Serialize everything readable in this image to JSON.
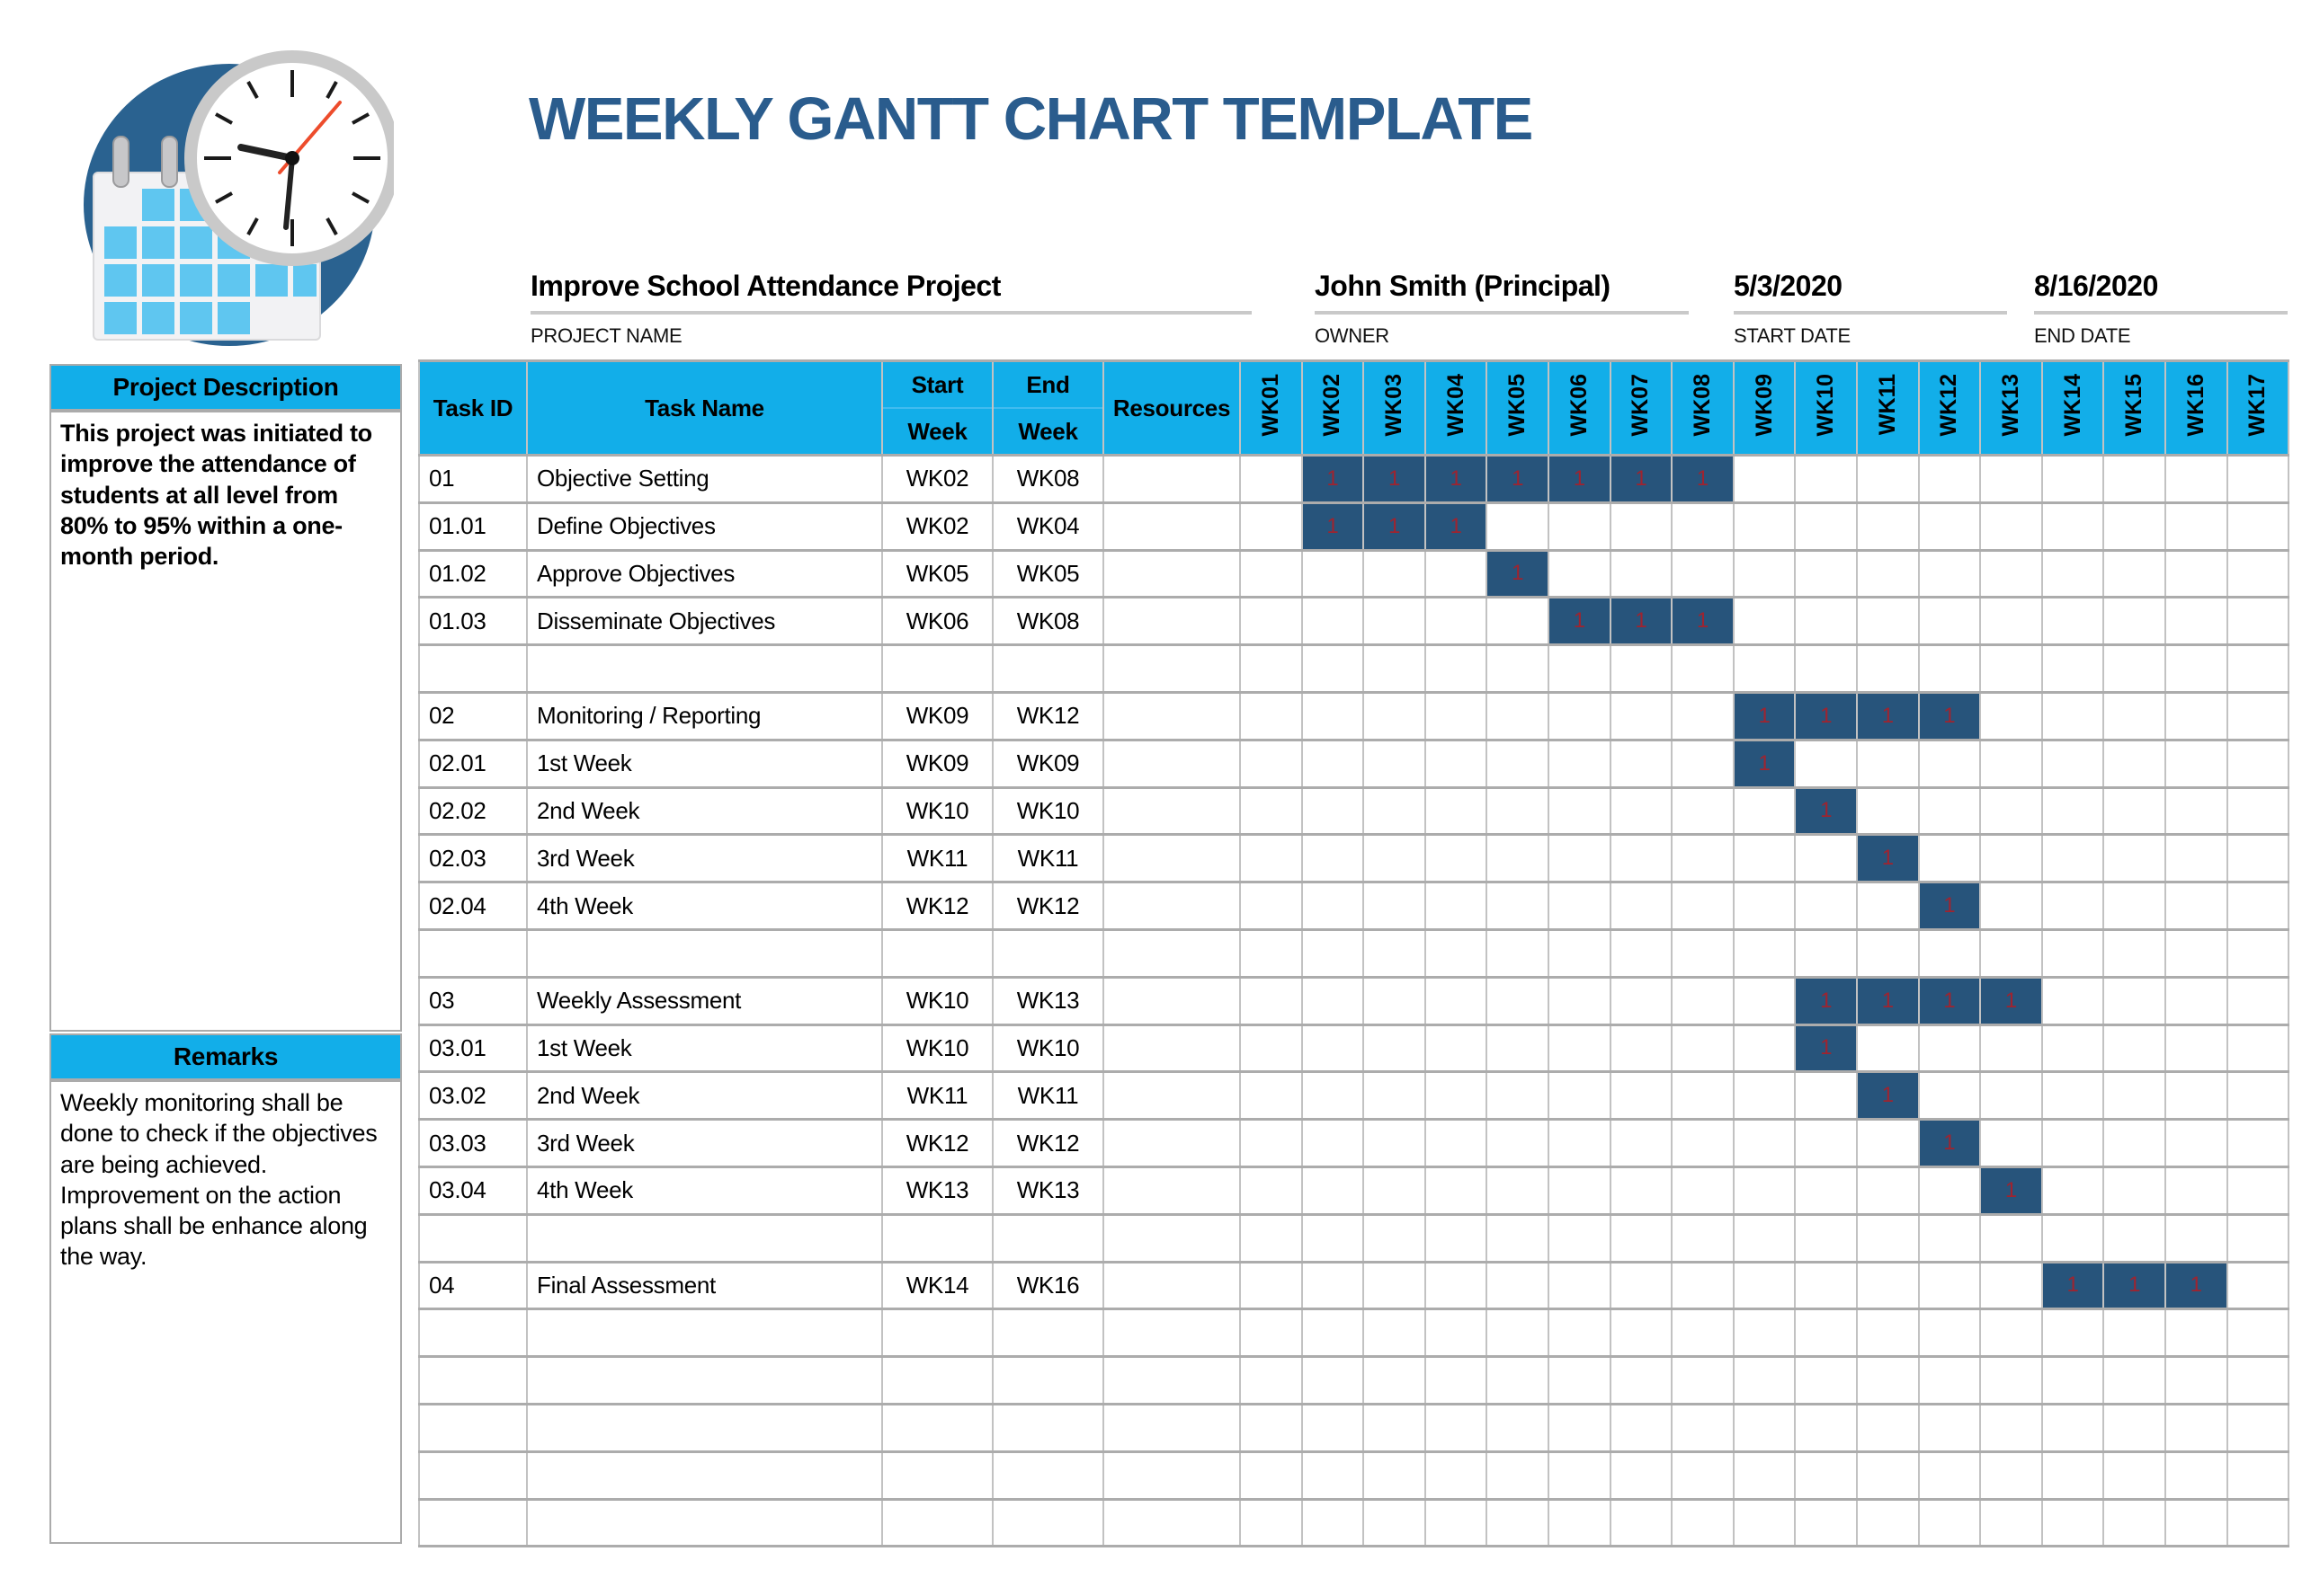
{
  "title": "WEEKLY GANTT CHART TEMPLATE",
  "colors": {
    "header_cyan": "#12AEE9",
    "bar_navy": "#27547B",
    "bar_value_red": "#9E2430",
    "title_blue": "#2A5C8D",
    "grid_gray": "#ACACAC",
    "logo_circle_blue": "#2A6290",
    "logo_square_blue": "#5FC6F0"
  },
  "project_info": {
    "project_name": {
      "value": "Improve School Attendance Project",
      "label": "PROJECT NAME"
    },
    "owner": {
      "value": "John Smith (Principal)",
      "label": "OWNER"
    },
    "start_date": {
      "value": "5/3/2020",
      "label": "START DATE"
    },
    "end_date": {
      "value": "8/16/2020",
      "label": "END DATE"
    }
  },
  "sidebar": {
    "description_header": "Project Description",
    "description_text": "This project was initiated to improve the attendance of students at all level from 80% to 95% within a one-month period.",
    "remarks_header": "Remarks",
    "remarks_text": "Weekly monitoring shall be done to check if the objectives are being achieved.\nImprovement on the action plans shall be enhance along the way."
  },
  "table": {
    "headers": {
      "task_id": "Task ID",
      "task_name": "Task Name",
      "start_line1": "Start",
      "start_line2": "Week",
      "end_line1": "End",
      "end_line2": "Week",
      "resources": "Resources"
    },
    "week_columns": [
      "WK01",
      "WK02",
      "WK03",
      "WK04",
      "WK05",
      "WK06",
      "WK07",
      "WK08",
      "WK09",
      "WK10",
      "WK11",
      "WK12",
      "WK13",
      "WK14",
      "WK15",
      "WK16",
      "WK17"
    ],
    "bar_value": "1",
    "rows": [
      {
        "id": "01",
        "name": "Objective Setting",
        "start": "WK02",
        "end": "WK08",
        "resources": "",
        "bar": [
          2,
          8
        ]
      },
      {
        "id": "01.01",
        "name": "Define Objectives",
        "start": "WK02",
        "end": "WK04",
        "resources": "",
        "bar": [
          2,
          4
        ]
      },
      {
        "id": "01.02",
        "name": "Approve Objectives",
        "start": "WK05",
        "end": "WK05",
        "resources": "",
        "bar": [
          5,
          5
        ]
      },
      {
        "id": "01.03",
        "name": "Disseminate Objectives",
        "start": "WK06",
        "end": "WK08",
        "resources": "",
        "bar": [
          6,
          8
        ]
      },
      {
        "id": "",
        "name": "",
        "start": "",
        "end": "",
        "resources": "",
        "bar": null
      },
      {
        "id": "02",
        "name": "Monitoring / Reporting",
        "start": "WK09",
        "end": "WK12",
        "resources": "",
        "bar": [
          9,
          12
        ]
      },
      {
        "id": "02.01",
        "name": "1st Week",
        "start": "WK09",
        "end": "WK09",
        "resources": "",
        "bar": [
          9,
          9
        ]
      },
      {
        "id": "02.02",
        "name": "2nd Week",
        "start": "WK10",
        "end": "WK10",
        "resources": "",
        "bar": [
          10,
          10
        ]
      },
      {
        "id": "02.03",
        "name": "3rd Week",
        "start": "WK11",
        "end": "WK11",
        "resources": "",
        "bar": [
          11,
          11
        ]
      },
      {
        "id": "02.04",
        "name": "4th Week",
        "start": "WK12",
        "end": "WK12",
        "resources": "",
        "bar": [
          12,
          12
        ]
      },
      {
        "id": "",
        "name": "",
        "start": "",
        "end": "",
        "resources": "",
        "bar": null
      },
      {
        "id": "03",
        "name": "Weekly Assessment",
        "start": "WK10",
        "end": "WK13",
        "resources": "",
        "bar": [
          10,
          13
        ]
      },
      {
        "id": "03.01",
        "name": "1st Week",
        "start": "WK10",
        "end": "WK10",
        "resources": "",
        "bar": [
          10,
          10
        ]
      },
      {
        "id": "03.02",
        "name": "2nd Week",
        "start": "WK11",
        "end": "WK11",
        "resources": "",
        "bar": [
          11,
          11
        ]
      },
      {
        "id": "03.03",
        "name": "3rd Week",
        "start": "WK12",
        "end": "WK12",
        "resources": "",
        "bar": [
          12,
          12
        ]
      },
      {
        "id": "03.04",
        "name": "4th Week",
        "start": "WK13",
        "end": "WK13",
        "resources": "",
        "bar": [
          13,
          13
        ]
      },
      {
        "id": "",
        "name": "",
        "start": "",
        "end": "",
        "resources": "",
        "bar": null
      },
      {
        "id": "04",
        "name": "Final Assessment",
        "start": "WK14",
        "end": "WK16",
        "resources": "",
        "bar": [
          14,
          16
        ]
      },
      {
        "id": "",
        "name": "",
        "start": "",
        "end": "",
        "resources": "",
        "bar": null
      },
      {
        "id": "",
        "name": "",
        "start": "",
        "end": "",
        "resources": "",
        "bar": null
      },
      {
        "id": "",
        "name": "",
        "start": "",
        "end": "",
        "resources": "",
        "bar": null
      },
      {
        "id": "",
        "name": "",
        "start": "",
        "end": "",
        "resources": "",
        "bar": null
      },
      {
        "id": "",
        "name": "",
        "start": "",
        "end": "",
        "resources": "",
        "bar": null
      }
    ]
  },
  "chart_data": {
    "type": "gantt",
    "title": "WEEKLY GANTT CHART TEMPLATE",
    "time_unit": "week",
    "x_categories": [
      "WK01",
      "WK02",
      "WK03",
      "WK04",
      "WK05",
      "WK06",
      "WK07",
      "WK08",
      "WK09",
      "WK10",
      "WK11",
      "WK12",
      "WK13",
      "WK14",
      "WK15",
      "WK16",
      "WK17"
    ],
    "cell_marker": "1",
    "project": {
      "name": "Improve School Attendance Project",
      "owner": "John Smith (Principal)",
      "start_date": "5/3/2020",
      "end_date": "8/16/2020"
    },
    "tasks": [
      {
        "id": "01",
        "name": "Objective Setting",
        "start": "WK02",
        "end": "WK08"
      },
      {
        "id": "01.01",
        "name": "Define Objectives",
        "start": "WK02",
        "end": "WK04"
      },
      {
        "id": "01.02",
        "name": "Approve Objectives",
        "start": "WK05",
        "end": "WK05"
      },
      {
        "id": "01.03",
        "name": "Disseminate Objectives",
        "start": "WK06",
        "end": "WK08"
      },
      {
        "id": "02",
        "name": "Monitoring / Reporting",
        "start": "WK09",
        "end": "WK12"
      },
      {
        "id": "02.01",
        "name": "1st Week",
        "start": "WK09",
        "end": "WK09"
      },
      {
        "id": "02.02",
        "name": "2nd Week",
        "start": "WK10",
        "end": "WK10"
      },
      {
        "id": "02.03",
        "name": "3rd Week",
        "start": "WK11",
        "end": "WK11"
      },
      {
        "id": "02.04",
        "name": "4th Week",
        "start": "WK12",
        "end": "WK12"
      },
      {
        "id": "03",
        "name": "Weekly Assessment",
        "start": "WK10",
        "end": "WK13"
      },
      {
        "id": "03.01",
        "name": "1st Week",
        "start": "WK10",
        "end": "WK10"
      },
      {
        "id": "03.02",
        "name": "2nd Week",
        "start": "WK11",
        "end": "WK11"
      },
      {
        "id": "03.03",
        "name": "3rd Week",
        "start": "WK12",
        "end": "WK12"
      },
      {
        "id": "03.04",
        "name": "4th Week",
        "start": "WK13",
        "end": "WK13"
      },
      {
        "id": "04",
        "name": "Final Assessment",
        "start": "WK14",
        "end": "WK16"
      }
    ]
  }
}
